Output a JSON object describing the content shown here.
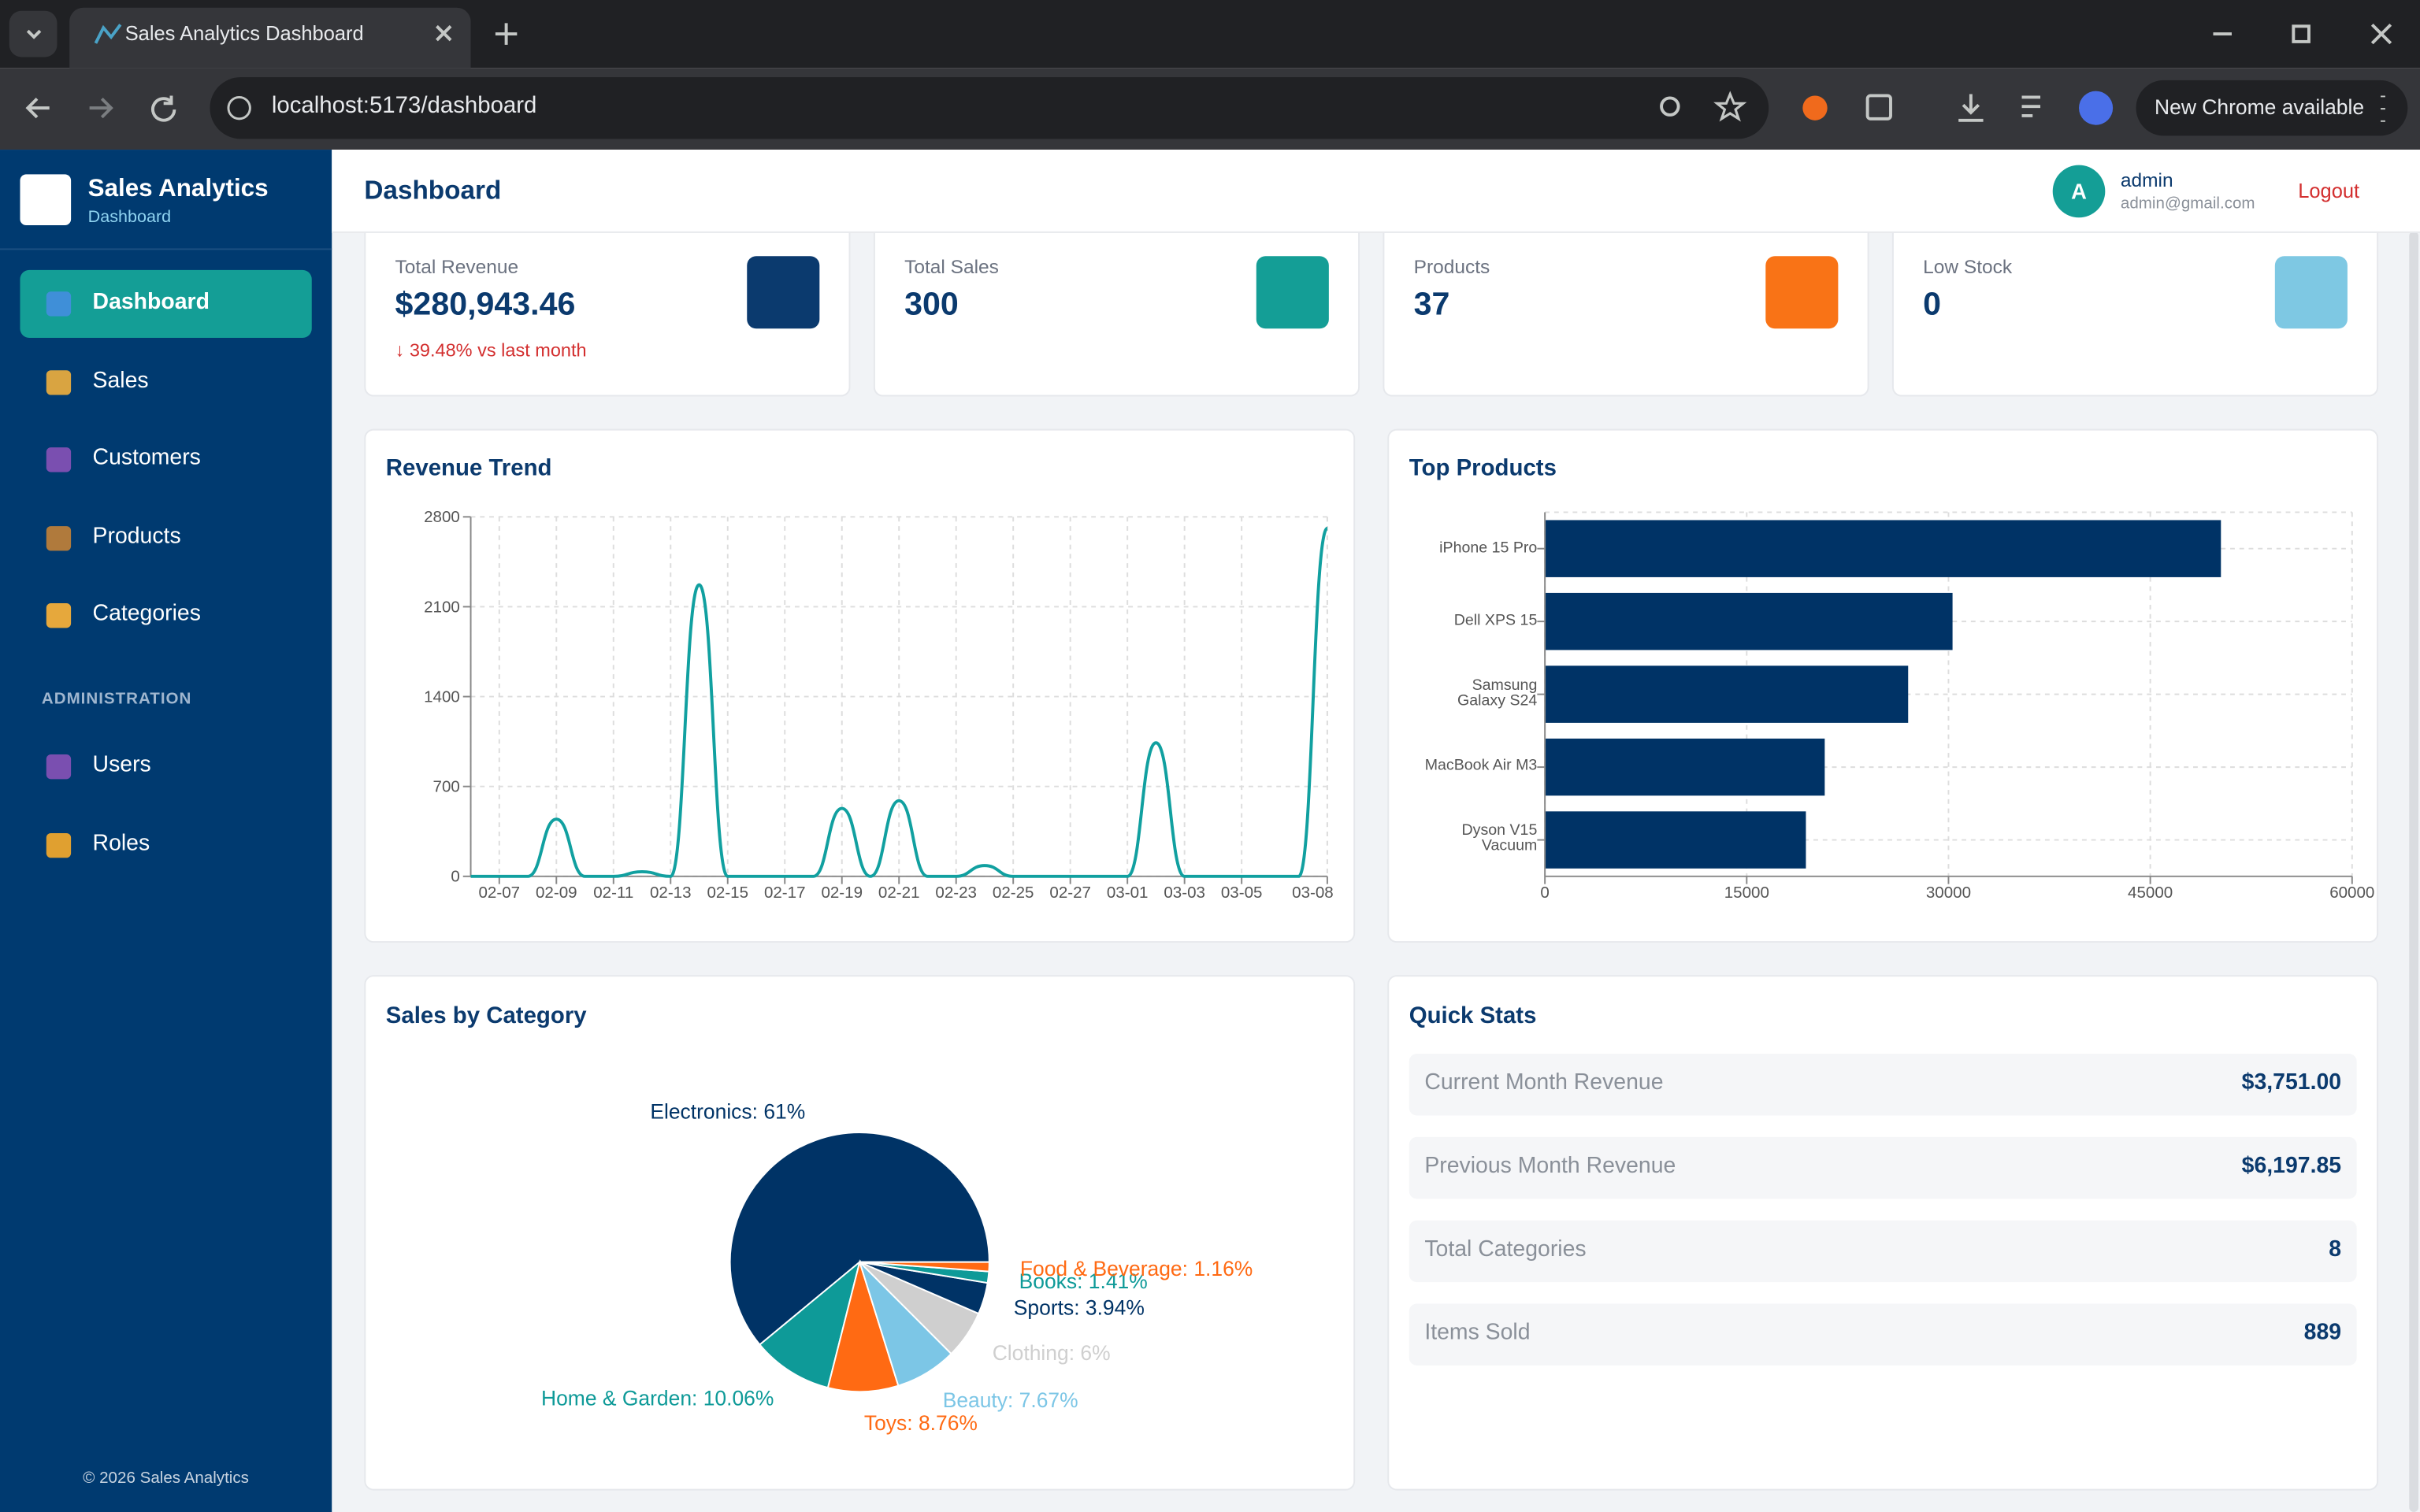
{
  "browser": {
    "tab_title": "Sales Analytics Dashboard",
    "url": "localhost:5173/dashboard",
    "update_button": "New Chrome available"
  },
  "sidebar": {
    "brand_title": "Sales Analytics",
    "brand_subtitle": "Dashboard",
    "nav": [
      "Dashboard",
      "Sales",
      "Customers",
      "Products",
      "Categories"
    ],
    "section_label": "ADMINISTRATION",
    "admin_nav": [
      "Users",
      "Roles"
    ],
    "footer": "© 2026 Sales Analytics"
  },
  "header": {
    "title": "Dashboard",
    "avatar": "A",
    "user_name": "admin",
    "user_email": "admin@gmail.com",
    "logout": "Logout"
  },
  "stat_cards": [
    {
      "label": "Total Revenue",
      "value": "$280,943.46",
      "change": "↓ 39.48% vs last month",
      "color": "#0b3a6e"
    },
    {
      "label": "Total Sales",
      "value": 300,
      "color": "#149e96"
    },
    {
      "label": "Products",
      "value": 37,
      "color": "#f97316"
    },
    {
      "label": "Low Stock",
      "value": 0,
      "color": "#7ec8e3"
    }
  ],
  "revenue_trend": {
    "type": "line",
    "title": "Revenue Trend",
    "categories": [
      null,
      "02-07",
      null,
      "02-09",
      null,
      "02-11",
      null,
      "02-13",
      null,
      "02-15",
      null,
      "02-17",
      null,
      "02-19",
      null,
      "02-21",
      null,
      "02-23",
      null,
      "02-25",
      null,
      "02-27",
      null,
      "03-01",
      null,
      "03-03",
      null,
      "03-05",
      null,
      null,
      "03-08"
    ],
    "values": [
      0,
      0,
      0,
      445,
      0,
      0,
      36,
      0,
      2271,
      0,
      0,
      0,
      0,
      529,
      0,
      589,
      0,
      0,
      84,
      0,
      0,
      0,
      0,
      0,
      1040,
      0,
      0,
      0,
      0,
      0,
      2711
    ],
    "color": "#11a0a0",
    "ylim": [
      0,
      2800
    ],
    "yticks": [
      0,
      700,
      1400,
      2100,
      2800
    ],
    "grid": true
  },
  "top_products": {
    "type": "bar",
    "orientation": "horizontal",
    "title": "Top Products",
    "categories": [
      "iPhone 15 Pro",
      "Dell XPS 15",
      "Samsung Galaxy S24",
      "MacBook Air M3",
      "Dyson V15 Vacuum"
    ],
    "values": [
      50250,
      30300,
      27000,
      20800,
      19400
    ],
    "color": "#003366",
    "xlim": [
      0,
      60000
    ],
    "xticks": [
      0,
      15000,
      30000,
      45000,
      60000
    ],
    "grid": true
  },
  "sales_by_category": {
    "type": "pie",
    "title": "Sales by Category",
    "values": [
      61,
      10.06,
      8.76,
      7.67,
      6,
      3.94,
      1.41,
      1.16
    ],
    "value_labels": [
      "Electronics: 61%",
      "Home & Garden: 10.06%",
      "Toys: 8.76%",
      "Beauty: 7.67%",
      "Clothing: 6%",
      "Sports: 3.94%",
      "Books: 1.41%",
      "Food & Beverage: 1.16%"
    ],
    "colors": [
      "#003366",
      "#0e9a98",
      "#ff6a13",
      "#7cc6e6",
      "#cfcfcf",
      "#003366",
      "#0e9a98",
      "#ff6a13"
    ]
  },
  "quick_stats": {
    "title": "Quick Stats",
    "rows": [
      [
        "Current Month Revenue",
        "$3,751.00"
      ],
      [
        "Previous Month Revenue",
        "$6,197.85"
      ],
      [
        "Total Categories",
        8
      ],
      [
        "Items Sold",
        889
      ]
    ]
  }
}
